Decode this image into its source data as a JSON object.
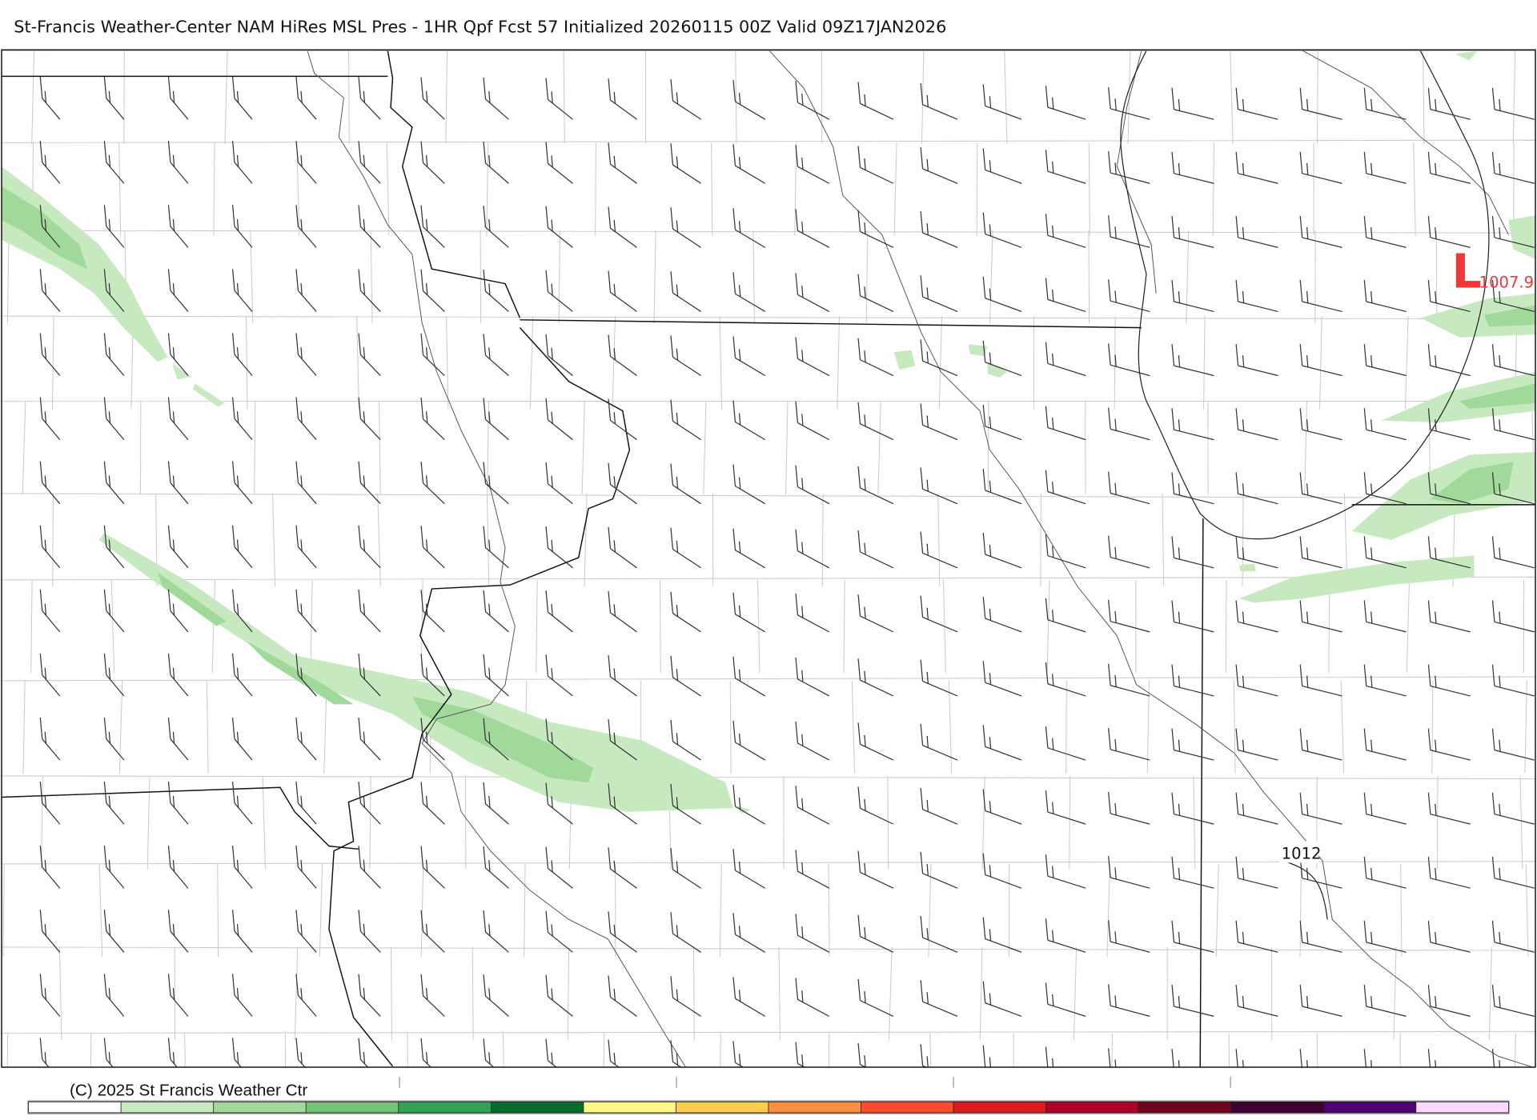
{
  "header": {
    "title": "St-Francis Weather-Center NAM HiRes MSL Pres - 1HR Qpf Fcst 57 Initialized 20260115 00Z Valid 09Z17JAN2026"
  },
  "map": {
    "low_center": {
      "symbol": "L",
      "pressure": "1007.9",
      "color": "#f03838"
    },
    "isobar_labels": [
      "1012"
    ],
    "precip_colors": {
      "light": "#c7e9c0",
      "medium": "#a1d99b"
    }
  },
  "footer": {
    "copyright": "(C) 2025 St Francis Weather Ctr",
    "colorbar": [
      "#ffffff",
      "#c7e9c0",
      "#a1d99b",
      "#74c476",
      "#31a354",
      "#006d2c",
      "#fff884",
      "#ffcc4f",
      "#fe8f3c",
      "#fd4d2b",
      "#da1a1e",
      "#ab0029",
      "#74001f",
      "#3f0030",
      "#4f0073",
      "#fbd9ff"
    ]
  }
}
